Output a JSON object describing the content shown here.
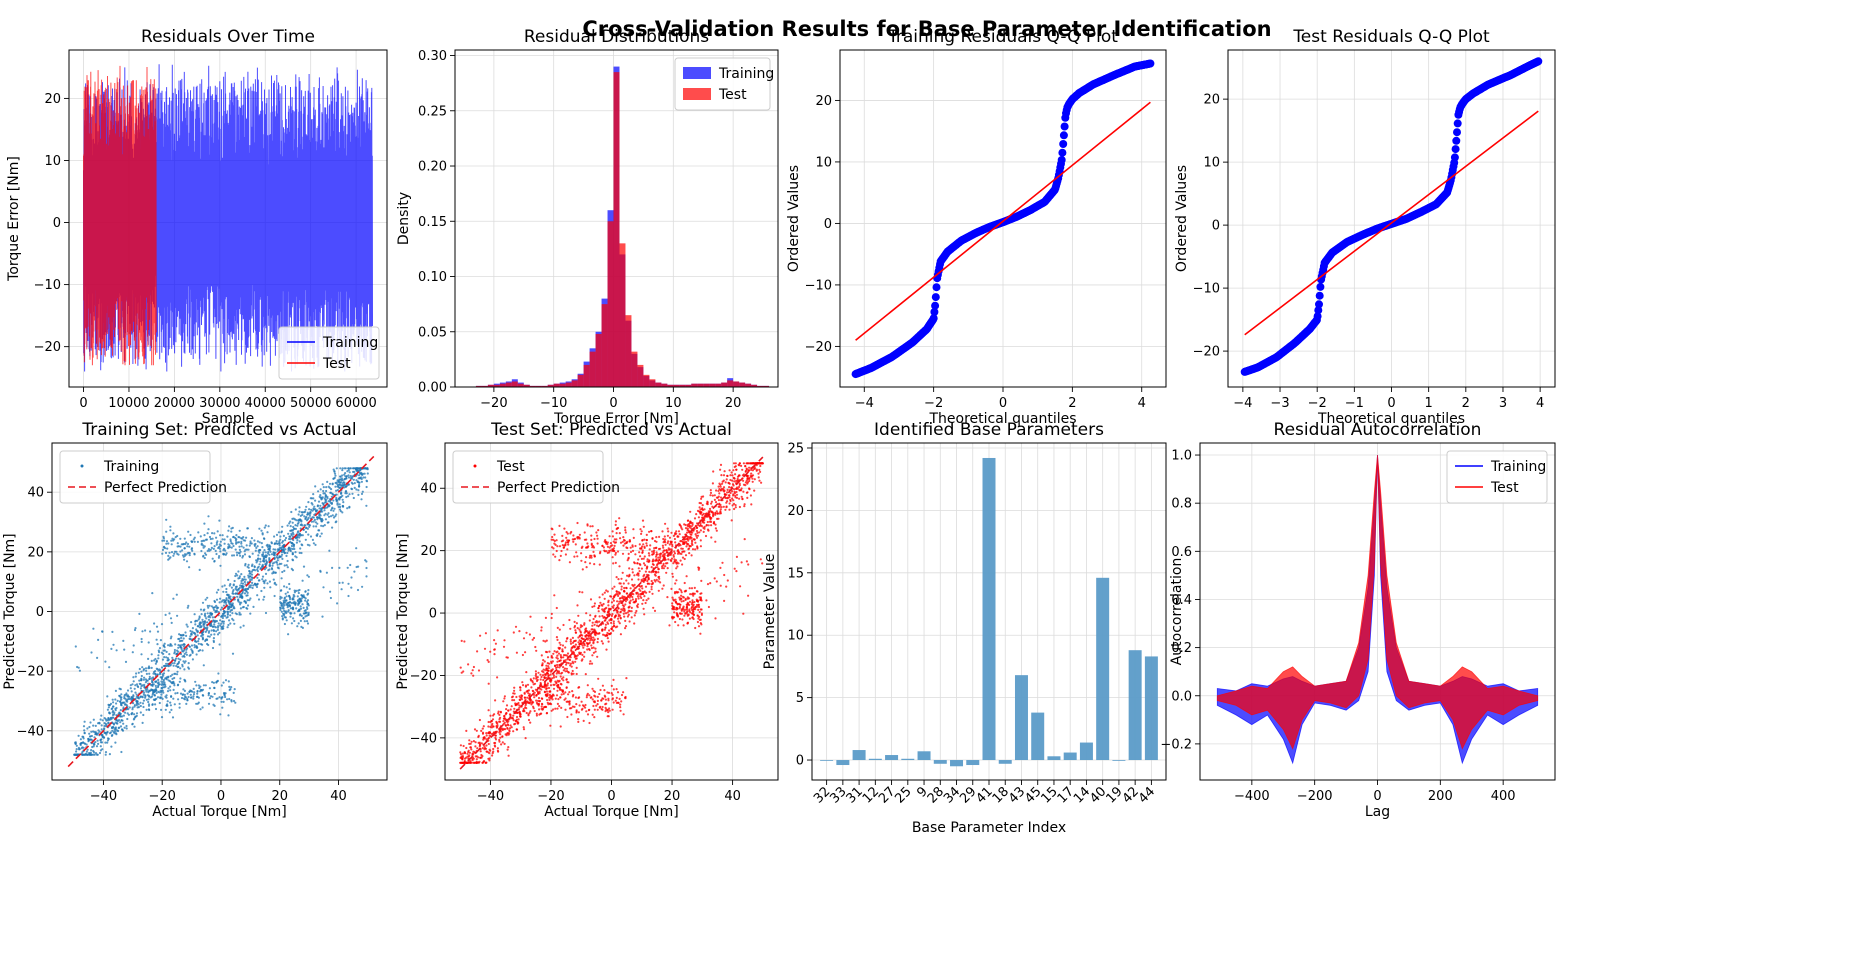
{
  "figure": {
    "suptitle": "Cross-Validation Results for Base Parameter Identification"
  },
  "colors": {
    "training": "#0000ff",
    "test": "#ff0000",
    "scatter_train": "#1f77b4",
    "bar": "#5b9bc8",
    "perfect_line": "#e8161e"
  },
  "chart_data": [
    {
      "id": "p1",
      "type": "line",
      "title": "Residuals Over Time",
      "xlabel": "Sample",
      "ylabel": "Torque Error [Nm]",
      "xlim": [
        -3200,
        66800
      ],
      "ylim": [
        -26.5,
        27.8
      ],
      "xticks": [
        0,
        10000,
        20000,
        30000,
        40000,
        50000,
        60000
      ],
      "yticks": [
        -20,
        -10,
        0,
        10,
        20
      ],
      "grid": true,
      "legend": "lower-right",
      "series": [
        {
          "name": "Training",
          "x_range": [
            0,
            63600
          ],
          "y_range": [
            -24,
            26
          ],
          "color": "#0000ff",
          "alpha": 0.7
        },
        {
          "name": "Test",
          "x_range": [
            0,
            16000
          ],
          "y_range": [
            -23,
            26
          ],
          "color": "#ff0000",
          "alpha": 0.7
        }
      ]
    },
    {
      "id": "p2",
      "type": "histogram",
      "title": "Residual Distributions",
      "xlabel": "Torque Error [Nm]",
      "ylabel": "Density",
      "xlim": [
        -26.5,
        27.5
      ],
      "ylim": [
        0,
        0.305
      ],
      "xticks": [
        -20,
        -10,
        0,
        10,
        20
      ],
      "yticks": [
        0,
        0.05,
        0.1,
        0.15,
        0.2,
        0.25,
        0.3
      ],
      "grid": true,
      "legend": "top-right",
      "bin_width": 1,
      "series": [
        {
          "name": "Training",
          "bin_starts": [
            -23,
            -22,
            -21,
            -20,
            -19,
            -18,
            -17,
            -16,
            -15,
            -14,
            -13,
            -12,
            -11,
            -10,
            -9,
            -8,
            -7,
            -6,
            -5,
            -4,
            -3,
            -2,
            -1,
            0,
            1,
            2,
            3,
            4,
            5,
            6,
            7,
            8,
            9,
            10,
            11,
            12,
            13,
            14,
            15,
            16,
            17,
            18,
            19,
            20,
            21,
            22,
            23,
            24,
            25
          ],
          "values": [
            0.001,
            0.001,
            0.002,
            0.003,
            0.004,
            0.005,
            0.007,
            0.004,
            0.002,
            0.001,
            0.001,
            0.001,
            0.002,
            0.003,
            0.004,
            0.005,
            0.007,
            0.012,
            0.023,
            0.035,
            0.05,
            0.08,
            0.16,
            0.29,
            0.12,
            0.06,
            0.03,
            0.018,
            0.01,
            0.006,
            0.004,
            0.003,
            0.002,
            0.002,
            0.002,
            0.002,
            0.003,
            0.003,
            0.003,
            0.003,
            0.003,
            0.004,
            0.008,
            0.005,
            0.004,
            0.003,
            0.002,
            0.001,
            0.001
          ]
        },
        {
          "name": "Test",
          "bin_starts": [
            -23,
            -22,
            -21,
            -20,
            -19,
            -18,
            -17,
            -16,
            -15,
            -14,
            -13,
            -12,
            -11,
            -10,
            -9,
            -8,
            -7,
            -6,
            -5,
            -4,
            -3,
            -2,
            -1,
            0,
            1,
            2,
            3,
            4,
            5,
            6,
            7,
            8,
            9,
            10,
            11,
            12,
            13,
            14,
            15,
            16,
            17,
            18,
            19,
            20,
            21,
            22,
            23,
            24,
            25
          ],
          "values": [
            0.001,
            0.001,
            0.002,
            0.002,
            0.003,
            0.004,
            0.005,
            0.003,
            0.002,
            0.001,
            0.001,
            0.001,
            0.002,
            0.003,
            0.003,
            0.004,
            0.006,
            0.011,
            0.02,
            0.032,
            0.048,
            0.075,
            0.15,
            0.285,
            0.13,
            0.065,
            0.032,
            0.02,
            0.011,
            0.007,
            0.004,
            0.003,
            0.002,
            0.002,
            0.002,
            0.002,
            0.003,
            0.003,
            0.003,
            0.003,
            0.003,
            0.004,
            0.006,
            0.005,
            0.004,
            0.003,
            0.002,
            0.001,
            0.001
          ]
        }
      ]
    },
    {
      "id": "p3",
      "type": "scatter",
      "title": "Training Residuals Q-Q Plot",
      "xlabel": "Theoretical quantiles",
      "ylabel": "Ordered Values",
      "xlim": [
        -4.7,
        4.7
      ],
      "ylim": [
        -26.6,
        28.2
      ],
      "xticks": [
        -4,
        -2,
        0,
        2,
        4
      ],
      "yticks": [
        -20,
        -10,
        0,
        10,
        20
      ],
      "grid": true,
      "curve": {
        "x": [
          -4.25,
          -3.8,
          -3.2,
          -2.6,
          -2.2,
          -2.0,
          -1.95,
          -1.9,
          -1.8,
          -1.6,
          -1.2,
          -0.8,
          -0.4,
          0,
          0.4,
          0.8,
          1.2,
          1.5,
          1.6,
          1.7,
          1.75,
          1.8,
          1.85,
          1.9,
          2.0,
          2.2,
          2.6,
          3.2,
          3.8,
          4.25
        ],
        "y": [
          -24.5,
          -23.5,
          -21.7,
          -19.3,
          -17.2,
          -15.5,
          -13,
          -9,
          -6.2,
          -4.6,
          -2.8,
          -1.6,
          -0.6,
          0.2,
          1.1,
          2.2,
          3.5,
          5.5,
          7.5,
          10.5,
          14,
          17.5,
          18.8,
          19.4,
          20.2,
          21.2,
          22.6,
          24.1,
          25.5,
          26
        ]
      },
      "fit_line": {
        "x": [
          -4.25,
          4.25
        ],
        "y": [
          -19,
          19.7
        ]
      }
    },
    {
      "id": "p4",
      "type": "scatter",
      "title": "Test Residuals Q-Q Plot",
      "xlabel": "Theoretical quantiles",
      "ylabel": "Ordered Values",
      "xlim": [
        -4.4,
        4.4
      ],
      "ylim": [
        -25.7,
        27.8
      ],
      "xticks": [
        -4,
        -3,
        -2,
        -1,
        0,
        1,
        2,
        3,
        4
      ],
      "yticks": [
        -20,
        -10,
        0,
        10,
        20
      ],
      "grid": true,
      "curve": {
        "x": [
          -3.95,
          -3.6,
          -3.1,
          -2.6,
          -2.2,
          -2.0,
          -1.95,
          -1.9,
          -1.8,
          -1.6,
          -1.2,
          -0.8,
          -0.4,
          0,
          0.4,
          0.8,
          1.2,
          1.5,
          1.6,
          1.7,
          1.75,
          1.8,
          1.85,
          1.9,
          2.0,
          2.2,
          2.6,
          3.2,
          3.7,
          3.95
        ],
        "y": [
          -23.3,
          -22.6,
          -21,
          -18.7,
          -16.5,
          -15,
          -12.5,
          -8.8,
          -6,
          -4.4,
          -2.7,
          -1.6,
          -0.6,
          0.2,
          1,
          2.1,
          3.3,
          5.2,
          7.2,
          10.3,
          13.8,
          17.5,
          18.7,
          19.2,
          20,
          20.9,
          22.3,
          23.8,
          25.3,
          26
        ]
      },
      "fit_line": {
        "x": [
          -3.95,
          3.95
        ],
        "y": [
          -17.4,
          18.1
        ]
      }
    },
    {
      "id": "p5",
      "type": "scatter",
      "title": "Training Set: Predicted vs Actual",
      "xlabel": "Actual Torque [Nm]",
      "ylabel": "Predicted Torque [Nm]",
      "xlim": [
        -57.5,
        56.5
      ],
      "ylim": [
        -56.5,
        56.5
      ],
      "xticks": [
        -40,
        -20,
        0,
        20,
        40
      ],
      "yticks": [
        -40,
        -20,
        0,
        20,
        40
      ],
      "grid": true,
      "legend": "top-left",
      "series": [
        {
          "name": "Training",
          "color": "#1f77b4",
          "x_range": [
            -52,
            52
          ],
          "y_range": [
            -48,
            48
          ]
        },
        {
          "name": "Perfect Prediction",
          "color": "#e8161e",
          "x": [
            -52,
            52
          ],
          "y": [
            -52,
            52
          ]
        }
      ]
    },
    {
      "id": "p6",
      "type": "scatter",
      "title": "Test Set: Predicted vs Actual",
      "xlabel": "Actual Torque [Nm]",
      "ylabel": "Predicted Torque [Nm]",
      "xlim": [
        -55,
        55
      ],
      "ylim": [
        -53.5,
        54.5
      ],
      "xticks": [
        -40,
        -20,
        0,
        20,
        40
      ],
      "yticks": [
        -40,
        -20,
        0,
        20,
        40
      ],
      "grid": true,
      "legend": "top-left",
      "series": [
        {
          "name": "Test",
          "color": "#ff0000",
          "x_range": [
            -50,
            50
          ],
          "y_range": [
            -48,
            48
          ]
        },
        {
          "name": "Perfect Prediction",
          "color": "#e8161e",
          "x": [
            -50,
            50
          ],
          "y": [
            -50,
            50
          ]
        }
      ]
    },
    {
      "id": "p7",
      "type": "bar",
      "title": "Identified Base Parameters",
      "xlabel": "Base Parameter Index",
      "ylabel": "Parameter Value",
      "ylim": [
        -1.6,
        25.4
      ],
      "yticks": [
        0,
        5,
        10,
        15,
        20,
        25
      ],
      "grid": true,
      "categories": [
        "32",
        "33",
        "31",
        "12",
        "27",
        "25",
        "9",
        "28",
        "34",
        "29",
        "41",
        "18",
        "43",
        "45",
        "15",
        "17",
        "14",
        "40",
        "19",
        "42",
        "44"
      ],
      "values": [
        0.0,
        -0.4,
        0.8,
        0.1,
        0.4,
        0.1,
        0.7,
        -0.3,
        -0.5,
        -0.4,
        24.2,
        -0.3,
        6.8,
        3.8,
        0.3,
        0.6,
        1.4,
        14.6,
        0.0,
        8.8,
        8.3
      ]
    },
    {
      "id": "p8",
      "type": "area",
      "title": "Residual Autocorrelation",
      "xlabel": "Lag",
      "ylabel": "Autocorrelation",
      "xlim": [
        -565,
        565
      ],
      "ylim": [
        -0.35,
        1.05
      ],
      "xticks": [
        -400,
        -200,
        0,
        200,
        400
      ],
      "yticks": [
        -0.2,
        0.0,
        0.2,
        0.4,
        0.6,
        0.8,
        1.0
      ],
      "grid": true,
      "legend": "top-right",
      "series": [
        {
          "name": "Training",
          "color": "#0000ff",
          "lag": [
            -510,
            -450,
            -400,
            -350,
            -300,
            -270,
            -240,
            -200,
            -150,
            -100,
            -60,
            -30,
            -10,
            0,
            10,
            30,
            60,
            100,
            150,
            200,
            240,
            270,
            300,
            350,
            400,
            450,
            510
          ],
          "upper": [
            0.03,
            0.02,
            0.05,
            0.04,
            0.07,
            0.08,
            0.06,
            0.04,
            0.05,
            0.06,
            0.2,
            0.45,
            0.8,
            1.0,
            0.8,
            0.45,
            0.2,
            0.06,
            0.05,
            0.04,
            0.06,
            0.08,
            0.07,
            0.04,
            0.05,
            0.02,
            0.03
          ],
          "lower": [
            -0.04,
            -0.08,
            -0.12,
            -0.08,
            -0.18,
            -0.28,
            -0.12,
            -0.03,
            -0.04,
            -0.06,
            -0.02,
            0.1,
            0.5,
            1.0,
            0.5,
            0.1,
            -0.02,
            -0.06,
            -0.04,
            -0.03,
            -0.12,
            -0.28,
            -0.18,
            -0.08,
            -0.12,
            -0.08,
            -0.04
          ]
        },
        {
          "name": "Test",
          "color": "#ff0000",
          "lag": [
            -510,
            -450,
            -400,
            -350,
            -300,
            -270,
            -240,
            -200,
            -150,
            -100,
            -60,
            -30,
            -10,
            0,
            10,
            30,
            60,
            100,
            150,
            200,
            240,
            270,
            300,
            350,
            400,
            450,
            510
          ],
          "upper": [
            0.0,
            0.02,
            0.04,
            0.03,
            0.1,
            0.12,
            0.08,
            0.04,
            0.05,
            0.06,
            0.22,
            0.5,
            0.85,
            1.0,
            0.85,
            0.5,
            0.22,
            0.06,
            0.05,
            0.04,
            0.08,
            0.12,
            0.1,
            0.03,
            0.04,
            0.02,
            0.0
          ],
          "lower": [
            -0.02,
            -0.04,
            -0.08,
            -0.06,
            -0.14,
            -0.22,
            -0.1,
            -0.02,
            -0.03,
            -0.05,
            0.0,
            0.15,
            0.55,
            1.0,
            0.55,
            0.15,
            0.0,
            -0.05,
            -0.03,
            -0.02,
            -0.1,
            -0.22,
            -0.14,
            -0.06,
            -0.08,
            -0.04,
            -0.02
          ]
        }
      ]
    }
  ]
}
